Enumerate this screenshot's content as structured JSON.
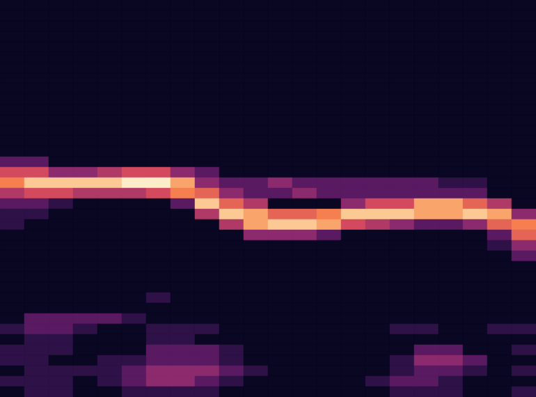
{
  "chart_data": {
    "type": "heatmap",
    "tick_labels": false,
    "xlim": [
      0,
      22
    ],
    "ylim": [
      0,
      38
    ],
    "color_range": [
      0,
      10
    ],
    "cells": [
      [
        0,
        0,
        0,
        0,
        0,
        0,
        0,
        0,
        0,
        0,
        0,
        0,
        0,
        0,
        0,
        0,
        0,
        0,
        0,
        0,
        0,
        0
      ],
      [
        0,
        0,
        0,
        0,
        0,
        0,
        0,
        0,
        0,
        0,
        0,
        0,
        0,
        0,
        0,
        0,
        0,
        0,
        0,
        0,
        0,
        0
      ],
      [
        0,
        0,
        0,
        0,
        0,
        0,
        0,
        0,
        0,
        0,
        0,
        0,
        0,
        0,
        0,
        0,
        0,
        0,
        0,
        0,
        0,
        0
      ],
      [
        0,
        0,
        0,
        0,
        0,
        0,
        0,
        0,
        0,
        0,
        0,
        0,
        0,
        0,
        0,
        0,
        0,
        0,
        0,
        0,
        0,
        0
      ],
      [
        0,
        0,
        0,
        0,
        0,
        0,
        0,
        0,
        0,
        0,
        0,
        0,
        0,
        0,
        0,
        0,
        0,
        0,
        0,
        0,
        0,
        0
      ],
      [
        0,
        0,
        0,
        0,
        0,
        0,
        0,
        0,
        0,
        0,
        0,
        0,
        0,
        0,
        0,
        0,
        0,
        0,
        0,
        0,
        0,
        0
      ],
      [
        0,
        0,
        0,
        0,
        0,
        0,
        0,
        0,
        0,
        0,
        0,
        0,
        0,
        0,
        0,
        0,
        0,
        0,
        0,
        0,
        0,
        0
      ],
      [
        0,
        0,
        0,
        0,
        0,
        0,
        0,
        0,
        0,
        0,
        0,
        0,
        0,
        0,
        0,
        0,
        0,
        0,
        0,
        0,
        0,
        0
      ],
      [
        0,
        0,
        0,
        0,
        0,
        0,
        0,
        0,
        0,
        0,
        0,
        0,
        0,
        0,
        0,
        0,
        0,
        0,
        0,
        0,
        0,
        0
      ],
      [
        0,
        0,
        0,
        0,
        0,
        0,
        0,
        0,
        0,
        0,
        0,
        0,
        0,
        0,
        0,
        0,
        0,
        0,
        0,
        0,
        0,
        0
      ],
      [
        0,
        0,
        0,
        0,
        0,
        0,
        0,
        0,
        0,
        0,
        0,
        0,
        0,
        0,
        0,
        0,
        0,
        0,
        0,
        0,
        0,
        0
      ],
      [
        0,
        0,
        0,
        0,
        0,
        0,
        0,
        0,
        0,
        0,
        0,
        0,
        0,
        0,
        0,
        0,
        0,
        0,
        0,
        0,
        0,
        0
      ],
      [
        0,
        0,
        0,
        0,
        0,
        0,
        0,
        0,
        0,
        0,
        0,
        0,
        0,
        0,
        0,
        0,
        0,
        0,
        0,
        0,
        0,
        0
      ],
      [
        0,
        0,
        0,
        0,
        0,
        0,
        0,
        0,
        0,
        0,
        0,
        0,
        0,
        0,
        0,
        0,
        0,
        0,
        0,
        0,
        0,
        0
      ],
      [
        0,
        0,
        0,
        0,
        0,
        0,
        0,
        0,
        0,
        0,
        0,
        0,
        0,
        0,
        0,
        0,
        0,
        0,
        0,
        0,
        0,
        0
      ],
      [
        2,
        2,
        0,
        0,
        0,
        0,
        0,
        0,
        0,
        0,
        0,
        0,
        0,
        0,
        0,
        0,
        0,
        0,
        0,
        0,
        0,
        0
      ],
      [
        5,
        5,
        3,
        3,
        4,
        5,
        5,
        3,
        2,
        0,
        0,
        0,
        0,
        0,
        0,
        0,
        0,
        0,
        0,
        0,
        0,
        0
      ],
      [
        7,
        9,
        9,
        9,
        9,
        10,
        10,
        8,
        3,
        2,
        2,
        3,
        2,
        2,
        2,
        2,
        2,
        2,
        1,
        1,
        0,
        0
      ],
      [
        4,
        5,
        5,
        4,
        4,
        4,
        5,
        7,
        6,
        3,
        2,
        2,
        3,
        2,
        2,
        2,
        2,
        2,
        2,
        2,
        0,
        0
      ],
      [
        2,
        2,
        1,
        0,
        0,
        0,
        0,
        2,
        9,
        6,
        4,
        0,
        0,
        0,
        3,
        5,
        5,
        8,
        8,
        6,
        4,
        0
      ],
      [
        1,
        1,
        0,
        0,
        0,
        0,
        0,
        0,
        4,
        9,
        8,
        6,
        6,
        7,
        9,
        9,
        9,
        8,
        8,
        9,
        8,
        3
      ],
      [
        1,
        0,
        0,
        0,
        0,
        0,
        0,
        0,
        0,
        4,
        8,
        9,
        9,
        8,
        5,
        4,
        3,
        2,
        2,
        3,
        6,
        7
      ],
      [
        0,
        0,
        0,
        0,
        0,
        0,
        0,
        0,
        0,
        0,
        3,
        3,
        3,
        2,
        0,
        0,
        0,
        0,
        0,
        0,
        2,
        6
      ],
      [
        0,
        0,
        0,
        0,
        0,
        0,
        0,
        0,
        0,
        0,
        0,
        0,
        0,
        0,
        0,
        0,
        0,
        0,
        0,
        0,
        1,
        3
      ],
      [
        0,
        0,
        0,
        0,
        0,
        0,
        0,
        0,
        0,
        0,
        0,
        0,
        0,
        0,
        0,
        0,
        0,
        0,
        0,
        0,
        0,
        2
      ],
      [
        0,
        0,
        0,
        0,
        0,
        0,
        0,
        0,
        0,
        0,
        0,
        0,
        0,
        0,
        0,
        0,
        0,
        0,
        0,
        0,
        0,
        0
      ],
      [
        0,
        0,
        0,
        0,
        0,
        0,
        0,
        0,
        0,
        0,
        0,
        0,
        0,
        0,
        0,
        0,
        0,
        0,
        0,
        0,
        0,
        0
      ],
      [
        0,
        0,
        0,
        0,
        0,
        0,
        0,
        0,
        0,
        0,
        0,
        0,
        0,
        0,
        0,
        0,
        0,
        0,
        0,
        0,
        0,
        0
      ],
      [
        0,
        0,
        0,
        0,
        0,
        0,
        1,
        0,
        0,
        0,
        0,
        0,
        0,
        0,
        0,
        0,
        0,
        0,
        0,
        0,
        0,
        0
      ],
      [
        0,
        0,
        0,
        0,
        0,
        0,
        0,
        0,
        0,
        0,
        0,
        0,
        0,
        0,
        0,
        0,
        0,
        0,
        0,
        0,
        0,
        0
      ],
      [
        0,
        2,
        2,
        2,
        2,
        1,
        0,
        0,
        0,
        0,
        0,
        0,
        0,
        0,
        0,
        0,
        0,
        0,
        0,
        0,
        0,
        0
      ],
      [
        1,
        2,
        2,
        1,
        0,
        0,
        1,
        1,
        1,
        0,
        0,
        0,
        0,
        0,
        0,
        0,
        1,
        1,
        0,
        0,
        1,
        1
      ],
      [
        0,
        1,
        1,
        0,
        0,
        0,
        1,
        1,
        0,
        0,
        0,
        0,
        0,
        0,
        0,
        0,
        0,
        0,
        0,
        0,
        0,
        0
      ],
      [
        1,
        1,
        1,
        0,
        0,
        0,
        2,
        2,
        2,
        1,
        0,
        0,
        0,
        0,
        0,
        0,
        0,
        2,
        2,
        0,
        0,
        1
      ],
      [
        1,
        1,
        0,
        0,
        1,
        1,
        2,
        2,
        2,
        1,
        0,
        0,
        0,
        0,
        0,
        0,
        1,
        3,
        3,
        2,
        0,
        0
      ],
      [
        0,
        1,
        1,
        1,
        1,
        2,
        3,
        3,
        3,
        2,
        1,
        0,
        0,
        0,
        0,
        0,
        1,
        2,
        2,
        1,
        0,
        1
      ],
      [
        1,
        1,
        1,
        0,
        1,
        2,
        3,
        3,
        2,
        1,
        0,
        0,
        0,
        0,
        0,
        1,
        2,
        2,
        1,
        0,
        0,
        0
      ],
      [
        0,
        1,
        1,
        0,
        0,
        1,
        1,
        1,
        1,
        0,
        0,
        0,
        0,
        0,
        0,
        0,
        1,
        1,
        1,
        0,
        0,
        1
      ]
    ]
  }
}
